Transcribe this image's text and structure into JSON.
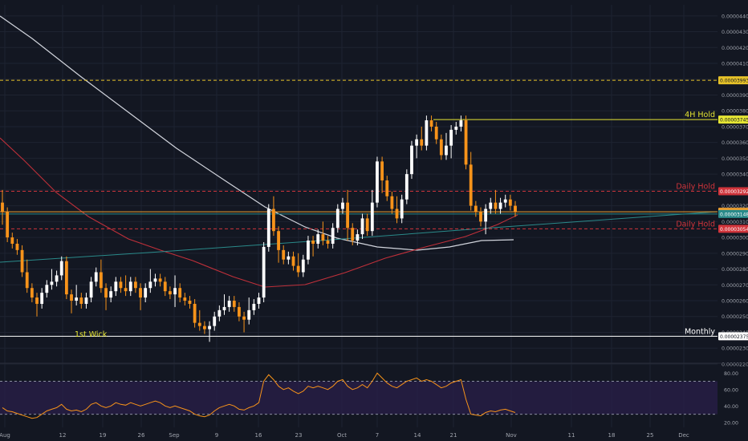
{
  "chart_data": {
    "type": "candlestick",
    "x_axis": {
      "labels": [
        "Aug",
        "12",
        "19",
        "26",
        "Sep",
        "9",
        "16",
        "23",
        "Oct",
        "7",
        "14",
        "21",
        "Nov",
        "11",
        "18",
        "25",
        "Dec"
      ]
    },
    "price_axis": {
      "ylim": [
        2.22e-05,
        4.47e-05
      ],
      "ticks": [
        "0.00004400",
        "0.00004300",
        "0.00004200",
        "0.00004100",
        "0.00004000",
        "0.00003900",
        "0.00003800",
        "0.00003700",
        "0.00003600",
        "0.00003500",
        "0.00003400",
        "0.00003300",
        "0.00003200",
        "0.00003100",
        "0.00003000",
        "0.00002900",
        "0.00002800",
        "0.00002700",
        "0.00002600",
        "0.00002500",
        "0.00002400",
        "0.00002300",
        "0.00002200"
      ]
    },
    "levels": [
      {
        "label": "",
        "value_text": "0.00003993",
        "value": 3.993e-05,
        "color": "#e6c229",
        "style": "dashed"
      },
      {
        "label": "4H Hold",
        "value_text": "0.00003745",
        "value": 3.745e-05,
        "color": "#e6e634",
        "style": "solid"
      },
      {
        "label": "Daily Hold",
        "value_text": "0.00003292",
        "value": 3.292e-05,
        "color": "#d0343b",
        "style": "dashed"
      },
      {
        "label": "",
        "value_text": "0.00003162",
        "value": 3.162e-05,
        "color": "#f0a030",
        "style": "solid"
      },
      {
        "label": "",
        "value_text": "0.00003148",
        "value": 3.148e-05,
        "color": "#2a8a8a",
        "style": "solid"
      },
      {
        "label": "Daily Hold",
        "value_text": "0.00003054",
        "value": 3.054e-05,
        "color": "#d0343b",
        "style": "dashed"
      },
      {
        "label": "Monthly",
        "value_text": "0.00002375",
        "value": 2.375e-05,
        "color": "#ffffff",
        "style": "solid"
      }
    ],
    "annotations": [
      "1st Wick"
    ],
    "candles_close": [
      3.16e-05,
      3e-05,
      2.96e-05,
      2.92e-05,
      2.78e-05,
      2.68e-05,
      2.62e-05,
      2.58e-05,
      2.65e-05,
      2.7e-05,
      2.72e-05,
      2.76e-05,
      2.85e-05,
      2.64e-05,
      2.6e-05,
      2.62e-05,
      2.58e-05,
      2.62e-05,
      2.72e-05,
      2.78e-05,
      2.68e-05,
      2.62e-05,
      2.66e-05,
      2.72e-05,
      2.68e-05,
      2.66e-05,
      2.72e-05,
      2.68e-05,
      2.62e-05,
      2.68e-05,
      2.72e-05,
      2.74e-05,
      2.72e-05,
      2.66e-05,
      2.64e-05,
      2.68e-05,
      2.62e-05,
      2.6e-05,
      2.58e-05,
      2.46e-05,
      2.44e-05,
      2.42e-05,
      2.44e-05,
      2.5e-05,
      2.54e-05,
      2.56e-05,
      2.6e-05,
      2.56e-05,
      2.5e-05,
      2.48e-05,
      2.54e-05,
      2.58e-05,
      2.62e-05,
      2.94e-05,
      3.18e-05,
      3.04e-05,
      2.92e-05,
      2.86e-05,
      2.88e-05,
      2.82e-05,
      2.78e-05,
      2.86e-05,
      2.98e-05,
      2.96e-05,
      3.02e-05,
      2.98e-05,
      2.96e-05,
      3.06e-05,
      3.18e-05,
      3.22e-05,
      3.06e-05,
      2.98e-05,
      3.02e-05,
      3.12e-05,
      3.04e-05,
      3.22e-05,
      3.48e-05,
      3.36e-05,
      3.26e-05,
      3.18e-05,
      3.12e-05,
      3.24e-05,
      3.4e-05,
      3.58e-05,
      3.62e-05,
      3.58e-05,
      3.74e-05,
      3.7e-05,
      3.62e-05,
      3.52e-05,
      3.58e-05,
      3.68e-05,
      3.7e-05,
      3.74e-05,
      3.46e-05,
      3.2e-05,
      3.16e-05,
      3.1e-05,
      3.18e-05,
      3.22e-05,
      3.18e-05,
      3.22e-05,
      3.24e-05,
      3.2e-05,
      3.16e-05
    ],
    "rsi": {
      "yticks": [
        "80.00",
        "60.00",
        "40.00",
        "20.00"
      ],
      "ylim": [
        14,
        90
      ],
      "bands": [
        70,
        30
      ],
      "values": [
        38,
        34,
        33,
        31,
        29,
        27,
        25,
        26,
        30,
        34,
        36,
        38,
        42,
        36,
        34,
        35,
        33,
        36,
        42,
        44,
        40,
        38,
        40,
        44,
        42,
        41,
        44,
        42,
        40,
        42,
        44,
        46,
        44,
        40,
        38,
        40,
        38,
        36,
        34,
        30,
        28,
        27,
        29,
        34,
        38,
        40,
        42,
        40,
        36,
        35,
        38,
        40,
        44,
        70,
        78,
        72,
        64,
        60,
        62,
        58,
        55,
        58,
        64,
        62,
        64,
        62,
        60,
        64,
        70,
        72,
        64,
        60,
        62,
        66,
        62,
        70,
        80,
        74,
        68,
        64,
        62,
        66,
        70,
        72,
        74,
        70,
        72,
        70,
        66,
        62,
        64,
        68,
        70,
        72,
        48,
        30,
        29,
        28,
        32,
        34,
        33,
        35,
        36,
        34,
        32
      ]
    },
    "grid": true
  }
}
